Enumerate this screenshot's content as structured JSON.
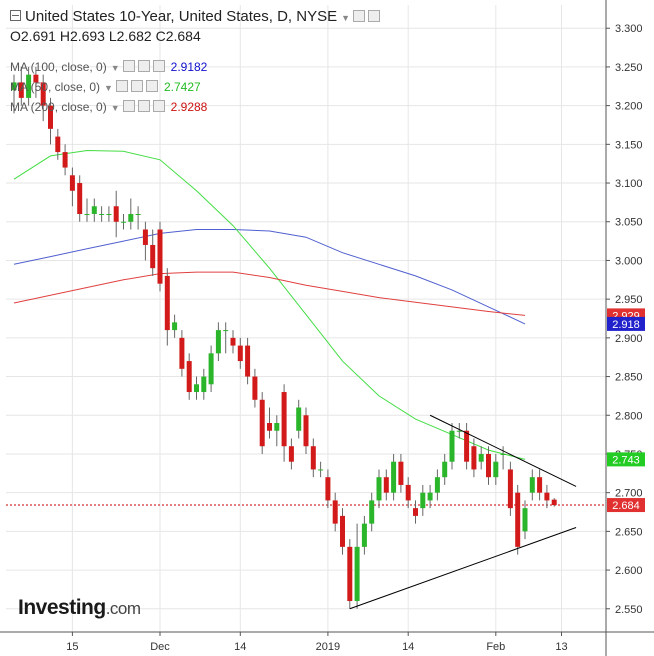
{
  "header": {
    "title": "United States 10-Year, United States, D, NYSE",
    "open": "O2.691",
    "high": "H2.693",
    "low": "L2.682",
    "close": "C2.684"
  },
  "indicators": [
    {
      "label": "MA (100, close, 0)",
      "value": "2.9182",
      "color": "#1010cc"
    },
    {
      "label": "MA (50, close, 0)",
      "value": "2.7427",
      "color": "#22bb22"
    },
    {
      "label": "MA (200, close, 0)",
      "value": "2.9288",
      "color": "#cc1111"
    }
  ],
  "logo": {
    "name": "Investing",
    "suffix": ".com"
  },
  "colors": {
    "up": "#2ab52a",
    "down": "#d31a1a",
    "ma100": "#5060d0",
    "ma50": "#44dd44",
    "ma200": "#e04040",
    "grid": "#e6e6e6",
    "trendline": "#000000"
  },
  "chart_data": {
    "type": "candlestick",
    "title": "United States 10-Year, United States, D, NYSE",
    "y_axis_side": "right",
    "ylim": [
      2.52,
      3.33
    ],
    "y_ticks": [
      "3.300",
      "3.250",
      "3.200",
      "3.150",
      "3.100",
      "3.050",
      "3.000",
      "2.950",
      "2.900",
      "2.850",
      "2.800",
      "2.750",
      "2.700",
      "2.650",
      "2.600",
      "2.550"
    ],
    "x_ticks": [
      {
        "label": "15",
        "index": 8
      },
      {
        "label": "Dec",
        "index": 20
      },
      {
        "label": "14",
        "index": 31
      },
      {
        "label": "2019",
        "index": 43
      },
      {
        "label": "14",
        "index": 54
      },
      {
        "label": "Feb",
        "index": 66
      },
      {
        "label": "13",
        "index": 75
      }
    ],
    "price_labels": [
      {
        "text": "2.929",
        "value": 2.929,
        "color": "#e03030"
      },
      {
        "text": "2.918",
        "value": 2.918,
        "color": "#2222cc"
      },
      {
        "text": "2.743",
        "value": 2.743,
        "color": "#22cc22"
      },
      {
        "text": "2.684",
        "value": 2.684,
        "color": "#e03030"
      }
    ],
    "current_price": 2.684,
    "candles": [
      {
        "o": 3.22,
        "h": 3.24,
        "l": 3.19,
        "c": 3.23
      },
      {
        "o": 3.23,
        "h": 3.25,
        "l": 3.2,
        "c": 3.21
      },
      {
        "o": 3.21,
        "h": 3.25,
        "l": 3.2,
        "c": 3.24
      },
      {
        "o": 3.24,
        "h": 3.25,
        "l": 3.21,
        "c": 3.23
      },
      {
        "o": 3.23,
        "h": 3.24,
        "l": 3.18,
        "c": 3.2
      },
      {
        "o": 3.2,
        "h": 3.21,
        "l": 3.15,
        "c": 3.17
      },
      {
        "o": 3.16,
        "h": 3.17,
        "l": 3.13,
        "c": 3.14
      },
      {
        "o": 3.14,
        "h": 3.15,
        "l": 3.11,
        "c": 3.12
      },
      {
        "o": 3.11,
        "h": 3.12,
        "l": 3.07,
        "c": 3.09
      },
      {
        "o": 3.1,
        "h": 3.11,
        "l": 3.05,
        "c": 3.06
      },
      {
        "o": 3.06,
        "h": 3.08,
        "l": 3.05,
        "c": 3.06
      },
      {
        "o": 3.06,
        "h": 3.08,
        "l": 3.05,
        "c": 3.07
      },
      {
        "o": 3.06,
        "h": 3.07,
        "l": 3.05,
        "c": 3.06
      },
      {
        "o": 3.06,
        "h": 3.07,
        "l": 3.05,
        "c": 3.06
      },
      {
        "o": 3.07,
        "h": 3.09,
        "l": 3.03,
        "c": 3.05
      },
      {
        "o": 3.05,
        "h": 3.06,
        "l": 3.04,
        "c": 3.05
      },
      {
        "o": 3.05,
        "h": 3.08,
        "l": 3.04,
        "c": 3.06
      },
      {
        "o": 3.06,
        "h": 3.07,
        "l": 3.04,
        "c": 3.06
      },
      {
        "o": 3.04,
        "h": 3.05,
        "l": 3.0,
        "c": 3.02
      },
      {
        "o": 3.02,
        "h": 3.04,
        "l": 2.98,
        "c": 2.99
      },
      {
        "o": 3.04,
        "h": 3.05,
        "l": 2.96,
        "c": 2.97
      },
      {
        "o": 2.98,
        "h": 2.99,
        "l": 2.89,
        "c": 2.91
      },
      {
        "o": 2.91,
        "h": 2.93,
        "l": 2.9,
        "c": 2.92
      },
      {
        "o": 2.9,
        "h": 2.91,
        "l": 2.85,
        "c": 2.86
      },
      {
        "o": 2.87,
        "h": 2.88,
        "l": 2.82,
        "c": 2.83
      },
      {
        "o": 2.83,
        "h": 2.85,
        "l": 2.82,
        "c": 2.84
      },
      {
        "o": 2.83,
        "h": 2.86,
        "l": 2.82,
        "c": 2.85
      },
      {
        "o": 2.84,
        "h": 2.89,
        "l": 2.83,
        "c": 2.88
      },
      {
        "o": 2.88,
        "h": 2.92,
        "l": 2.87,
        "c": 2.91
      },
      {
        "o": 2.91,
        "h": 2.92,
        "l": 2.88,
        "c": 2.91
      },
      {
        "o": 2.9,
        "h": 2.91,
        "l": 2.88,
        "c": 2.89
      },
      {
        "o": 2.89,
        "h": 2.9,
        "l": 2.86,
        "c": 2.87
      },
      {
        "o": 2.89,
        "h": 2.9,
        "l": 2.84,
        "c": 2.85
      },
      {
        "o": 2.85,
        "h": 2.86,
        "l": 2.81,
        "c": 2.82
      },
      {
        "o": 2.82,
        "h": 2.83,
        "l": 2.75,
        "c": 2.76
      },
      {
        "o": 2.79,
        "h": 2.81,
        "l": 2.77,
        "c": 2.78
      },
      {
        "o": 2.78,
        "h": 2.8,
        "l": 2.76,
        "c": 2.79
      },
      {
        "o": 2.83,
        "h": 2.84,
        "l": 2.74,
        "c": 2.76
      },
      {
        "o": 2.76,
        "h": 2.77,
        "l": 2.73,
        "c": 2.74
      },
      {
        "o": 2.78,
        "h": 2.82,
        "l": 2.77,
        "c": 2.81
      },
      {
        "o": 2.8,
        "h": 2.81,
        "l": 2.75,
        "c": 2.76
      },
      {
        "o": 2.76,
        "h": 2.77,
        "l": 2.72,
        "c": 2.73
      },
      {
        "o": 2.73,
        "h": 2.74,
        "l": 2.72,
        "c": 2.73
      },
      {
        "o": 2.72,
        "h": 2.73,
        "l": 2.68,
        "c": 2.69
      },
      {
        "o": 2.69,
        "h": 2.7,
        "l": 2.65,
        "c": 2.66
      },
      {
        "o": 2.67,
        "h": 2.68,
        "l": 2.62,
        "c": 2.63
      },
      {
        "o": 2.63,
        "h": 2.64,
        "l": 2.55,
        "c": 2.56
      },
      {
        "o": 2.56,
        "h": 2.66,
        "l": 2.55,
        "c": 2.63
      },
      {
        "o": 2.63,
        "h": 2.67,
        "l": 2.62,
        "c": 2.66
      },
      {
        "o": 2.66,
        "h": 2.7,
        "l": 2.65,
        "c": 2.69
      },
      {
        "o": 2.69,
        "h": 2.73,
        "l": 2.68,
        "c": 2.72
      },
      {
        "o": 2.72,
        "h": 2.73,
        "l": 2.69,
        "c": 2.7
      },
      {
        "o": 2.7,
        "h": 2.75,
        "l": 2.69,
        "c": 2.74
      },
      {
        "o": 2.74,
        "h": 2.75,
        "l": 2.7,
        "c": 2.71
      },
      {
        "o": 2.71,
        "h": 2.72,
        "l": 2.68,
        "c": 2.69
      },
      {
        "o": 2.68,
        "h": 2.69,
        "l": 2.66,
        "c": 2.67
      },
      {
        "o": 2.68,
        "h": 2.71,
        "l": 2.67,
        "c": 2.7
      },
      {
        "o": 2.69,
        "h": 2.71,
        "l": 2.68,
        "c": 2.7
      },
      {
        "o": 2.7,
        "h": 2.73,
        "l": 2.69,
        "c": 2.72
      },
      {
        "o": 2.72,
        "h": 2.75,
        "l": 2.71,
        "c": 2.74
      },
      {
        "o": 2.74,
        "h": 2.79,
        "l": 2.73,
        "c": 2.78
      },
      {
        "o": 2.78,
        "h": 2.79,
        "l": 2.77,
        "c": 2.78
      },
      {
        "o": 2.78,
        "h": 2.79,
        "l": 2.73,
        "c": 2.74
      },
      {
        "o": 2.76,
        "h": 2.77,
        "l": 2.72,
        "c": 2.73
      },
      {
        "o": 2.74,
        "h": 2.76,
        "l": 2.73,
        "c": 2.75
      },
      {
        "o": 2.75,
        "h": 2.76,
        "l": 2.71,
        "c": 2.72
      },
      {
        "o": 2.72,
        "h": 2.75,
        "l": 2.71,
        "c": 2.74
      },
      {
        "o": 2.75,
        "h": 2.76,
        "l": 2.73,
        "c": 2.75
      },
      {
        "o": 2.73,
        "h": 2.74,
        "l": 2.67,
        "c": 2.68
      },
      {
        "o": 2.7,
        "h": 2.71,
        "l": 2.62,
        "c": 2.63
      },
      {
        "o": 2.65,
        "h": 2.69,
        "l": 2.64,
        "c": 2.68
      },
      {
        "o": 2.7,
        "h": 2.73,
        "l": 2.69,
        "c": 2.72
      },
      {
        "o": 2.72,
        "h": 2.73,
        "l": 2.69,
        "c": 2.7
      },
      {
        "o": 2.7,
        "h": 2.71,
        "l": 2.68,
        "c": 2.69
      },
      {
        "o": 2.691,
        "h": 2.693,
        "l": 2.682,
        "c": 2.684
      }
    ],
    "series": [
      {
        "name": "MA (100, close, 0)",
        "values": [
          [
            0,
            2.995
          ],
          [
            5,
            3.005
          ],
          [
            10,
            3.015
          ],
          [
            15,
            3.025
          ],
          [
            20,
            3.035
          ],
          [
            25,
            3.04
          ],
          [
            30,
            3.04
          ],
          [
            35,
            3.038
          ],
          [
            40,
            3.03
          ],
          [
            45,
            3.01
          ],
          [
            50,
            2.995
          ],
          [
            55,
            2.98
          ],
          [
            60,
            2.962
          ],
          [
            65,
            2.94
          ],
          [
            70,
            2.918
          ]
        ]
      },
      {
        "name": "MA (50, close, 0)",
        "values": [
          [
            0,
            3.105
          ],
          [
            5,
            3.135
          ],
          [
            10,
            3.142
          ],
          [
            15,
            3.141
          ],
          [
            20,
            3.13
          ],
          [
            25,
            3.09
          ],
          [
            30,
            3.045
          ],
          [
            35,
            2.99
          ],
          [
            40,
            2.93
          ],
          [
            45,
            2.87
          ],
          [
            50,
            2.825
          ],
          [
            55,
            2.795
          ],
          [
            60,
            2.775
          ],
          [
            65,
            2.755
          ],
          [
            70,
            2.743
          ]
        ]
      },
      {
        "name": "MA (200, close, 0)",
        "values": [
          [
            0,
            2.945
          ],
          [
            5,
            2.955
          ],
          [
            10,
            2.965
          ],
          [
            15,
            2.975
          ],
          [
            20,
            2.983
          ],
          [
            25,
            2.985
          ],
          [
            30,
            2.985
          ],
          [
            35,
            2.978
          ],
          [
            40,
            2.968
          ],
          [
            45,
            2.96
          ],
          [
            50,
            2.952
          ],
          [
            55,
            2.946
          ],
          [
            60,
            2.94
          ],
          [
            65,
            2.934
          ],
          [
            70,
            2.929
          ]
        ]
      }
    ],
    "trendlines": [
      {
        "from": [
          46,
          2.55
        ],
        "to": [
          77,
          2.655
        ]
      },
      {
        "from": [
          57,
          2.8
        ],
        "to": [
          77,
          2.708
        ]
      }
    ]
  }
}
